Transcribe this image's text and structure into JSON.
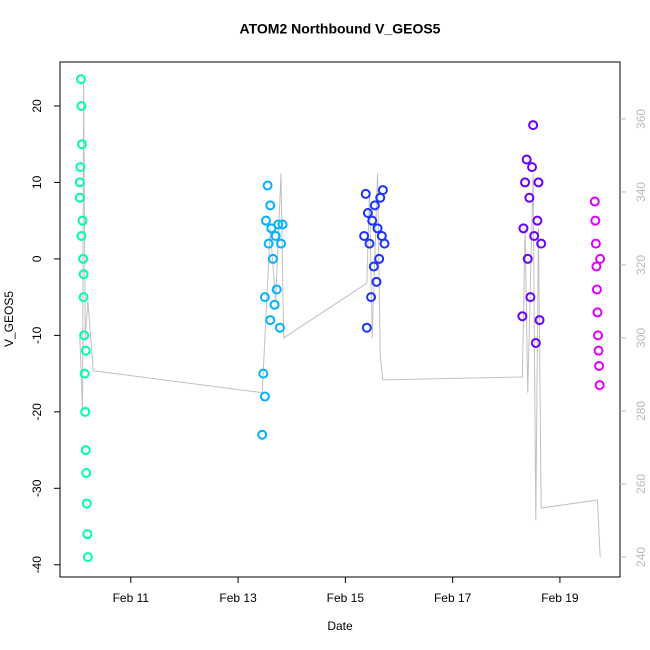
{
  "chart_data": {
    "type": "scatter",
    "title": "ATOM2 Northbound V_GEOS5",
    "x_label": "Date",
    "y_label": "V_GEOS5",
    "xlim": [
      9.68,
      20.12
    ],
    "ylim": [
      -41.6,
      25.75
    ],
    "y2lim": [
      234.5,
      375.6
    ],
    "xticks": [
      {
        "value": 11,
        "label": "Feb 11"
      },
      {
        "value": 13,
        "label": "Feb 13"
      },
      {
        "value": 15,
        "label": "Feb 15"
      },
      {
        "value": 17,
        "label": "Feb 17"
      },
      {
        "value": 19,
        "label": "Feb 19"
      }
    ],
    "yticks": [
      -40,
      -30,
      -20,
      -10,
      0,
      10,
      20
    ],
    "y2ticks": [
      240,
      260,
      280,
      300,
      320,
      340,
      360
    ],
    "series": [
      {
        "type": "line",
        "axis": "y2",
        "color": "#c0c0c0",
        "x": [
          10.05,
          10.1,
          10.12,
          10.15,
          10.2,
          10.3,
          13.45,
          13.5,
          13.6,
          13.7,
          13.8,
          13.85,
          15.4,
          15.45,
          15.5,
          15.6,
          15.65,
          15.7,
          18.3,
          18.35,
          18.4,
          18.5,
          18.55,
          18.6,
          18.65,
          19.7,
          19.75
        ],
        "values": [
          300,
          280,
          370,
          300,
          310,
          291,
          285,
          300,
          330,
          310,
          345,
          300,
          315,
          340,
          300,
          345,
          295,
          288.5,
          289.3,
          330,
          285,
          345,
          250,
          330,
          253.4,
          255.6,
          240
        ]
      },
      {
        "color": "#00ffaa",
        "x": [
          10.05,
          10.06,
          10.07,
          10.08,
          10.09,
          10.1,
          10.11,
          10.12,
          10.13,
          10.14,
          10.15,
          10.16,
          10.17,
          10.18,
          10.19,
          10.2,
          10.05,
          10.08,
          10.12,
          10.16
        ],
        "values": [
          10,
          12,
          23.5,
          20,
          15,
          5,
          0,
          -5,
          -10,
          -15,
          -20,
          -25,
          -28,
          -32,
          -36,
          -39,
          8,
          3,
          -2,
          -12
        ]
      },
      {
        "color": "#00b2ff",
        "x": [
          13.45,
          13.47,
          13.5,
          13.52,
          13.55,
          13.57,
          13.6,
          13.62,
          13.65,
          13.68,
          13.7,
          13.72,
          13.75,
          13.78,
          13.8,
          13.83,
          13.5,
          13.6
        ],
        "values": [
          -23,
          -15,
          -5,
          5,
          9.6,
          2,
          -8,
          4,
          0,
          -6,
          3,
          -4,
          4.5,
          -9,
          2,
          4.5,
          -18,
          7
        ]
      },
      {
        "color": "#1a33ff",
        "x": [
          15.35,
          15.38,
          15.4,
          15.42,
          15.45,
          15.48,
          15.5,
          15.53,
          15.55,
          15.58,
          15.6,
          15.63,
          15.65,
          15.68,
          15.7,
          15.73
        ],
        "values": [
          3,
          8.5,
          -9,
          6,
          2,
          -5,
          5,
          -1,
          7,
          -3,
          4,
          0,
          8,
          3,
          9,
          2
        ]
      },
      {
        "color": "#6a00ff",
        "x": [
          18.3,
          18.32,
          18.35,
          18.38,
          18.4,
          18.43,
          18.45,
          18.48,
          18.5,
          18.52,
          18.55,
          18.58,
          18.6,
          18.62,
          18.65
        ],
        "values": [
          -7.5,
          4,
          10,
          13,
          0,
          8,
          -5,
          12,
          17.5,
          3,
          -11,
          5,
          10,
          -8,
          2
        ]
      },
      {
        "color": "#e000ff",
        "x": [
          19.65,
          19.66,
          19.67,
          19.68,
          19.69,
          19.7,
          19.71,
          19.72,
          19.73,
          19.74,
          19.75
        ],
        "values": [
          7.5,
          5,
          2,
          -1,
          -4,
          -7,
          -10,
          -12,
          -14,
          -16.5,
          0
        ]
      }
    ]
  }
}
